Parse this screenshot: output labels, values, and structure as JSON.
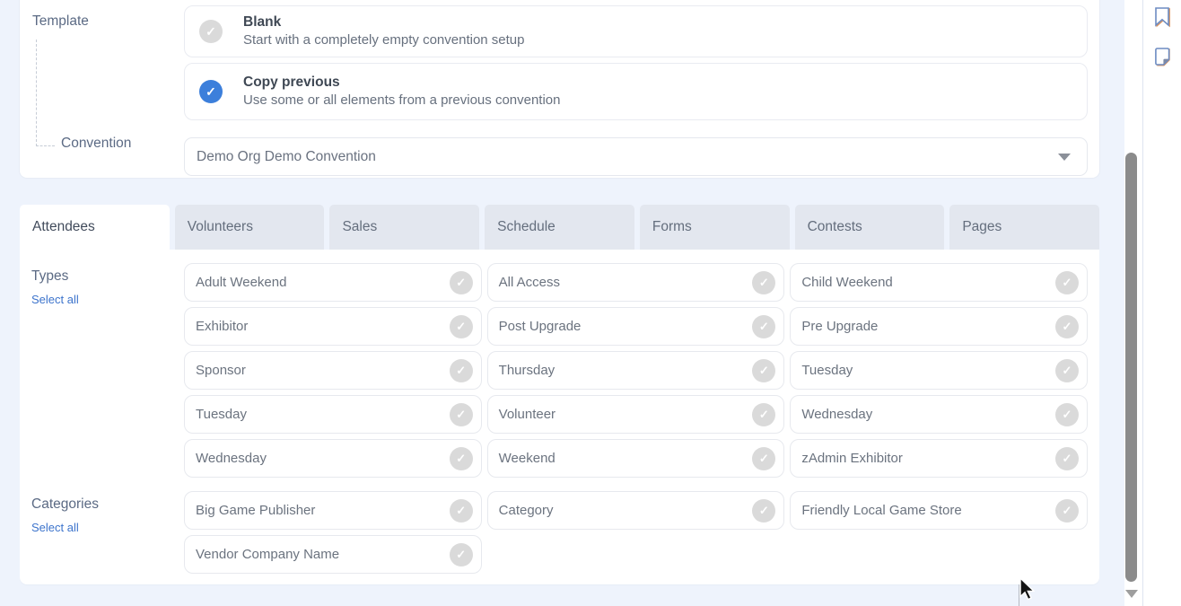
{
  "template_section": {
    "label": "Template",
    "options": [
      {
        "title": "Blank",
        "description": "Start with a completely empty convention setup",
        "selected": false
      },
      {
        "title": "Copy previous",
        "description": "Use some or all elements from a previous convention",
        "selected": true
      }
    ],
    "convention_label": "Convention",
    "convention_value": "Demo Org Demo Convention"
  },
  "tabs": [
    {
      "label": "Attendees",
      "active": true
    },
    {
      "label": "Volunteers",
      "active": false
    },
    {
      "label": "Sales",
      "active": false
    },
    {
      "label": "Schedule",
      "active": false
    },
    {
      "label": "Forms",
      "active": false
    },
    {
      "label": "Contests",
      "active": false
    },
    {
      "label": "Pages",
      "active": false
    }
  ],
  "attendees_panel": {
    "types": {
      "label": "Types",
      "select_all_label": "Select all",
      "items": [
        "Adult Weekend",
        "All Access",
        "Child Weekend",
        "Exhibitor",
        "Post Upgrade",
        "Pre Upgrade",
        "Sponsor",
        "Thursday",
        "Tuesday",
        "Tuesday",
        "Volunteer",
        "Wednesday",
        "Wednesday",
        "Weekend",
        "zAdmin Exhibitor"
      ]
    },
    "categories": {
      "label": "Categories",
      "select_all_label": "Select all",
      "items": [
        "Big Game Publisher",
        "Category",
        "Friendly Local Game Store",
        "Vendor Company Name"
      ]
    }
  },
  "right_rail": {
    "icons": [
      "bookmark-icon",
      "note-icon"
    ]
  },
  "colors": {
    "accent_blue": "#3c7fdb",
    "link_blue": "#3d74cc",
    "page_background": "#eef3fc",
    "inactive_tab_background": "#e3e7ef",
    "check_badge_gray": "#dadada",
    "scrollbar_thumb": "#8b8b8b"
  }
}
